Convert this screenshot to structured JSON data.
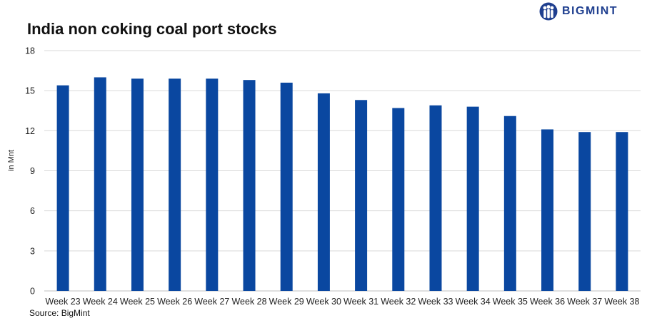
{
  "brand": {
    "logo_text": "BIGMINT",
    "logo_icon": "people-icon",
    "color": "#1f3f8f"
  },
  "source": "Source: BigMint",
  "chart_data": {
    "type": "bar",
    "title": "India non coking coal port stocks",
    "xlabel": "",
    "ylabel": "in Mnt",
    "ylim": [
      0,
      18
    ],
    "yticks": [
      0,
      3,
      6,
      9,
      12,
      15,
      18
    ],
    "grid": true,
    "bar_color": "#0a47a0",
    "categories": [
      "Week 23",
      "Week 24",
      "Week 25",
      "Week 26",
      "Week 27",
      "Week 28",
      "Week 29",
      "Week 30",
      "Week 31",
      "Week 32",
      "Week 33",
      "Week 34",
      "Week 35",
      "Week 36",
      "Week 37",
      "Week 38"
    ],
    "values": [
      15.4,
      16.0,
      15.9,
      15.9,
      15.9,
      15.8,
      15.6,
      14.8,
      14.3,
      13.7,
      13.9,
      13.8,
      13.1,
      12.1,
      11.9,
      11.9
    ]
  }
}
